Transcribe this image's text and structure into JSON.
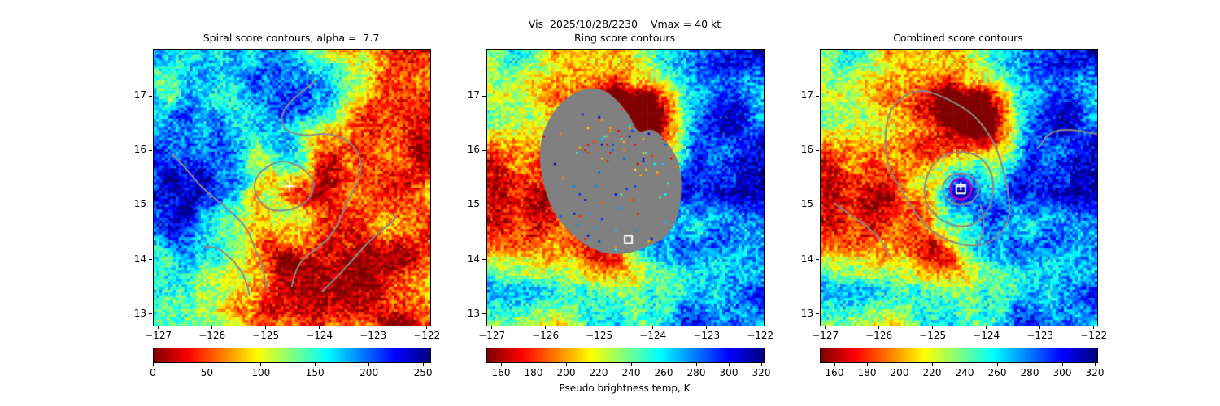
{
  "suptitle": "Vis  2025/10/28/2230    Vmax = 40 kt",
  "axes": {
    "xlim": [
      -127.1,
      -121.95
    ],
    "ylim": [
      12.8,
      17.87
    ],
    "xtick_values": [
      -127,
      -126,
      -125,
      -124,
      -123,
      -122
    ],
    "xtick_labels": [
      "−127",
      "−126",
      "−125",
      "−124",
      "−123",
      "−122"
    ],
    "ytick_values": [
      17,
      16,
      15,
      14,
      13
    ],
    "ytick_labels": [
      "17",
      "16",
      "15",
      "14",
      "13"
    ]
  },
  "colors": {
    "contour": "#8a8a8a",
    "mask": "#808080",
    "ring_marker": "#bf00bf",
    "point_marker": "#ffffff",
    "background": "#ffffff"
  },
  "chart_data": {
    "type": "heatmap",
    "colormap": "jet_r",
    "panels": [
      {
        "id": "spiral",
        "title": "Spiral score contours, alpha =  7.7",
        "field": "spiral_score",
        "seed": 7,
        "colorbar": {
          "vmin": 0,
          "vmax": 256,
          "ticks": [
            0,
            50,
            100,
            150,
            200,
            250
          ],
          "tick_labels": [
            "0",
            "50",
            "100",
            "150",
            "200",
            "250"
          ],
          "label": ""
        },
        "markers": [
          {
            "type": "plus",
            "lon": -124.57,
            "lat": 15.36,
            "size": 12
          }
        ],
        "contours": [
          {
            "closed": false,
            "points": [
              [
                -124.09,
                17.3
              ],
              [
                -124.34,
                17.1
              ],
              [
                -124.65,
                16.83
              ],
              [
                -124.74,
                16.56
              ],
              [
                -124.62,
                16.36
              ],
              [
                -124.27,
                16.28
              ],
              [
                -123.89,
                16.34
              ],
              [
                -123.52,
                16.23
              ],
              [
                -123.31,
                16.02
              ],
              [
                -123.22,
                15.75
              ],
              [
                -123.28,
                15.46
              ],
              [
                -123.46,
                15.14
              ],
              [
                -123.58,
                14.86
              ],
              [
                -123.76,
                14.49
              ],
              [
                -124.04,
                14.22
              ],
              [
                -124.31,
                14.05
              ],
              [
                -124.46,
                13.8
              ],
              [
                -124.53,
                13.52
              ]
            ]
          },
          {
            "closed": true,
            "points": [
              [
                -124.1,
                15.38
              ],
              [
                -124.2,
                15.58
              ],
              [
                -124.4,
                15.74
              ],
              [
                -124.7,
                15.84
              ],
              [
                -124.96,
                15.74
              ],
              [
                -125.17,
                15.57
              ],
              [
                -125.24,
                15.35
              ],
              [
                -125.16,
                15.12
              ],
              [
                -124.99,
                14.93
              ],
              [
                -124.68,
                14.9
              ],
              [
                -124.4,
                14.97
              ],
              [
                -124.2,
                15.13
              ]
            ]
          },
          {
            "closed": false,
            "points": [
              [
                -126.75,
                15.95
              ],
              [
                -126.49,
                15.68
              ],
              [
                -126.24,
                15.37
              ],
              [
                -125.93,
                15.11
              ],
              [
                -125.63,
                14.86
              ],
              [
                -125.43,
                14.67
              ],
              [
                -125.31,
                14.47
              ],
              [
                -125.24,
                14.26
              ],
              [
                -125.13,
                14.03
              ],
              [
                -125.05,
                13.77
              ],
              [
                -125.01,
                13.58
              ],
              [
                -124.98,
                13.44
              ]
            ]
          },
          {
            "closed": false,
            "points": [
              [
                -126.16,
                14.25
              ],
              [
                -125.93,
                14.25
              ],
              [
                -125.74,
                14.1
              ],
              [
                -125.55,
                13.92
              ],
              [
                -125.43,
                13.73
              ],
              [
                -125.35,
                13.52
              ],
              [
                -125.32,
                13.37
              ]
            ]
          },
          {
            "closed": false,
            "points": [
              [
                -123.96,
                13.43
              ],
              [
                -123.56,
                13.82
              ],
              [
                -123.26,
                14.17
              ],
              [
                -122.96,
                14.47
              ],
              [
                -122.7,
                14.67
              ],
              [
                -122.58,
                14.77
              ],
              [
                -122.66,
                14.85
              ]
            ]
          }
        ]
      },
      {
        "id": "ring",
        "title": "Ring score contours",
        "field": "brightness_temp",
        "seed": 11,
        "colorbar": {
          "vmin": 151,
          "vmax": 321,
          "ticks": [
            160,
            180,
            200,
            220,
            240,
            260,
            280,
            300,
            320
          ],
          "tick_labels": [
            "160",
            "180",
            "200",
            "220",
            "240",
            "260",
            "280",
            "300",
            "320"
          ],
          "label": "Pseudo brightness temp, K"
        },
        "markers": [
          {
            "type": "square",
            "lon": -124.47,
            "lat": 14.38,
            "size": 9
          }
        ],
        "contours": [],
        "mask_polygon": [
          [
            -125.43,
            17.12
          ],
          [
            -124.93,
            17.17
          ],
          [
            -124.48,
            16.71
          ],
          [
            -124.3,
            16.3
          ],
          [
            -124.05,
            16.42
          ],
          [
            -123.8,
            16.23
          ],
          [
            -123.49,
            15.74
          ],
          [
            -123.51,
            14.92
          ],
          [
            -123.72,
            14.48
          ],
          [
            -124.07,
            14.26
          ],
          [
            -124.63,
            14.1
          ],
          [
            -125.1,
            14.18
          ],
          [
            -125.58,
            14.52
          ],
          [
            -125.96,
            15.04
          ],
          [
            -126.16,
            16.01
          ],
          [
            -125.9,
            16.72
          ]
        ],
        "mask_speckle_center": [
          -124.5,
          16.0
        ]
      },
      {
        "id": "combined",
        "title": "Combined score contours",
        "field": "brightness_temp",
        "seed": 11,
        "colorbar": {
          "vmin": 151,
          "vmax": 321,
          "ticks": [
            160,
            180,
            200,
            220,
            240,
            260,
            280,
            300,
            320
          ],
          "tick_labels": [
            "160",
            "180",
            "200",
            "220",
            "240",
            "260",
            "280",
            "300",
            "320"
          ],
          "label": ""
        },
        "markers": [
          {
            "type": "circle",
            "lon": -124.49,
            "lat": 15.31,
            "size": 26
          },
          {
            "type": "square",
            "lon": -124.49,
            "lat": 15.31,
            "size": 11
          },
          {
            "type": "plus",
            "lon": -124.49,
            "lat": 15.36,
            "size": 9
          }
        ],
        "contours": [
          {
            "closed": true,
            "points": [
              [
                -124.13,
                15.31
              ],
              [
                -124.24,
                15.53
              ],
              [
                -124.49,
                15.62
              ],
              [
                -124.75,
                15.53
              ],
              [
                -124.85,
                15.31
              ],
              [
                -124.75,
                15.09
              ],
              [
                -124.49,
                15.0
              ],
              [
                -124.24,
                15.09
              ]
            ]
          },
          {
            "closed": false,
            "points": [
              [
                -124.13,
                15.02
              ],
              [
                -124.05,
                14.78
              ],
              [
                -124.08,
                14.52
              ],
              [
                -124.15,
                14.29
              ]
            ]
          },
          {
            "closed": true,
            "points": [
              [
                -123.85,
                15.32
              ],
              [
                -123.97,
                15.78
              ],
              [
                -124.35,
                16.02
              ],
              [
                -124.85,
                15.95
              ],
              [
                -125.15,
                15.55
              ],
              [
                -125.18,
                15.08
              ],
              [
                -124.88,
                14.72
              ],
              [
                -124.42,
                14.58
              ],
              [
                -124.02,
                14.8
              ]
            ]
          },
          {
            "closed": true,
            "points": [
              [
                -125.31,
                17.17
              ],
              [
                -125.86,
                16.8
              ],
              [
                -125.92,
                15.83
              ],
              [
                -125.54,
                15.19
              ],
              [
                -125.13,
                14.56
              ],
              [
                -124.48,
                14.25
              ],
              [
                -123.92,
                14.29
              ],
              [
                -123.55,
                14.75
              ],
              [
                -123.62,
                15.38
              ],
              [
                -123.8,
                16.01
              ],
              [
                -123.96,
                16.31
              ],
              [
                -124.27,
                16.71
              ],
              [
                -124.8,
                17.0
              ]
            ]
          },
          {
            "closed": false,
            "points": [
              [
                -126.85,
                15.05
              ],
              [
                -126.5,
                14.8
              ],
              [
                -126.2,
                14.6
              ],
              [
                -125.95,
                14.35
              ],
              [
                -125.8,
                14.05
              ]
            ]
          },
          {
            "closed": false,
            "points": [
              [
                -121.96,
                16.32
              ],
              [
                -122.45,
                16.42
              ],
              [
                -122.85,
                16.35
              ],
              [
                -123.05,
                16.05
              ]
            ]
          }
        ]
      }
    ]
  }
}
